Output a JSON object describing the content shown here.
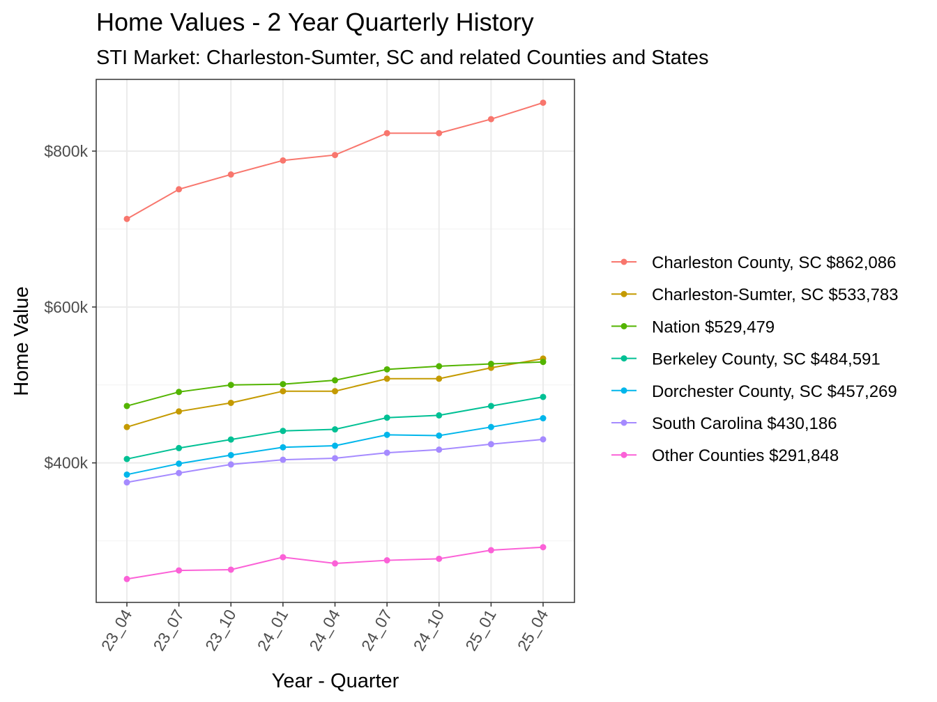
{
  "chart_data": {
    "type": "line",
    "title": "Home Values - 2 Year Quarterly History",
    "subtitle": "STI Market: Charleston-Sumter, SC and related Counties and States",
    "xlabel": "Year - Quarter",
    "ylabel": "Home Value",
    "categories": [
      "23_04",
      "23_07",
      "23_10",
      "24_01",
      "24_04",
      "24_07",
      "24_10",
      "25_01",
      "25_04"
    ],
    "ylim": [
      221000,
      892000
    ],
    "yticks": [
      400000,
      600000,
      800000
    ],
    "ytick_labels": [
      "$400k",
      "$600k",
      "$800k"
    ],
    "minor_yticks": [
      300000,
      500000,
      700000
    ],
    "grid": true,
    "legend_position": "right",
    "series": [
      {
        "name": "Charleston County, SC $862,086",
        "color": "#F8766D",
        "values": [
          713000,
          751000,
          770000,
          788000,
          795000,
          823000,
          823000,
          841000,
          862086
        ]
      },
      {
        "name": "Charleston-Sumter, SC $533,783",
        "color": "#C49A00",
        "values": [
          446000,
          466000,
          477000,
          492000,
          492000,
          508000,
          508000,
          522000,
          533783
        ]
      },
      {
        "name": "Nation $529,479",
        "color": "#53B400",
        "values": [
          473000,
          491000,
          500000,
          501000,
          506000,
          520000,
          524000,
          527000,
          529479
        ]
      },
      {
        "name": "Berkeley County, SC $484,591",
        "color": "#00C094",
        "values": [
          405000,
          419000,
          430000,
          441000,
          443000,
          458000,
          461000,
          473000,
          484591
        ]
      },
      {
        "name": "Dorchester County, SC $457,269",
        "color": "#00B6EB",
        "values": [
          385000,
          399000,
          410000,
          420000,
          422000,
          436000,
          435000,
          446000,
          457269
        ]
      },
      {
        "name": "South Carolina $430,186",
        "color": "#A58AFF",
        "values": [
          375000,
          387000,
          398000,
          404000,
          406000,
          413000,
          417000,
          424000,
          430186
        ]
      },
      {
        "name": "Other Counties $291,848",
        "color": "#FB61D7",
        "values": [
          251000,
          262000,
          263000,
          279000,
          271000,
          275000,
          277000,
          288000,
          291848
        ]
      }
    ]
  }
}
